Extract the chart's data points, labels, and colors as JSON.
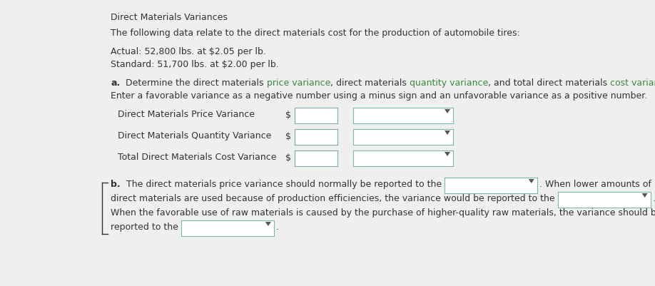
{
  "bg_color": "#efefef",
  "title": "Direct Materials Variances",
  "intro": "The following data relate to the direct materials cost for the production of automobile tires:",
  "actual_line": "Actual: 52,800 lbs. at $2.05 per lb.",
  "standard_line": "Standard: 51,700 lbs. at $2.00 per lb.",
  "part_a_bold": "a. ",
  "part_a_pre": " Determine the direct materials ",
  "part_a_word1": "price variance",
  "part_a_mid1": ", direct materials ",
  "part_a_word2": "quantity variance",
  "part_a_mid2": ", and total direct materials ",
  "part_a_word3": "cost variance",
  "part_a_suffix": ".",
  "part_a_line2": "Enter a favorable variance as a negative number using a minus sign and an unfavorable variance as a positive number.",
  "row1_label": "Direct Materials Price Variance",
  "row2_label": "Direct Materials Quantity Variance",
  "row3_label": "Total Direct Materials Cost Variance",
  "part_b_bold": "b. ",
  "part_b_pre": " The direct materials price variance should normally be reported to the",
  "part_b_post": ". When lower amounts of",
  "part_b2_pre": "direct materials are used because of production efficiencies, the variance would be reported to the",
  "part_b2_post": ".",
  "part_b3": "When the favorable use of raw materials is caused by the purchase of higher-quality raw materials, the variance should be",
  "part_b4_pre": "reported to the",
  "part_b4_post": ".",
  "green_color": "#3a8a3a",
  "text_color": "#333333",
  "box_fill": "#ffffff",
  "box_edge": "#7aaaaa",
  "dropdown_edge": "#7abaaa",
  "fs": 9.0
}
